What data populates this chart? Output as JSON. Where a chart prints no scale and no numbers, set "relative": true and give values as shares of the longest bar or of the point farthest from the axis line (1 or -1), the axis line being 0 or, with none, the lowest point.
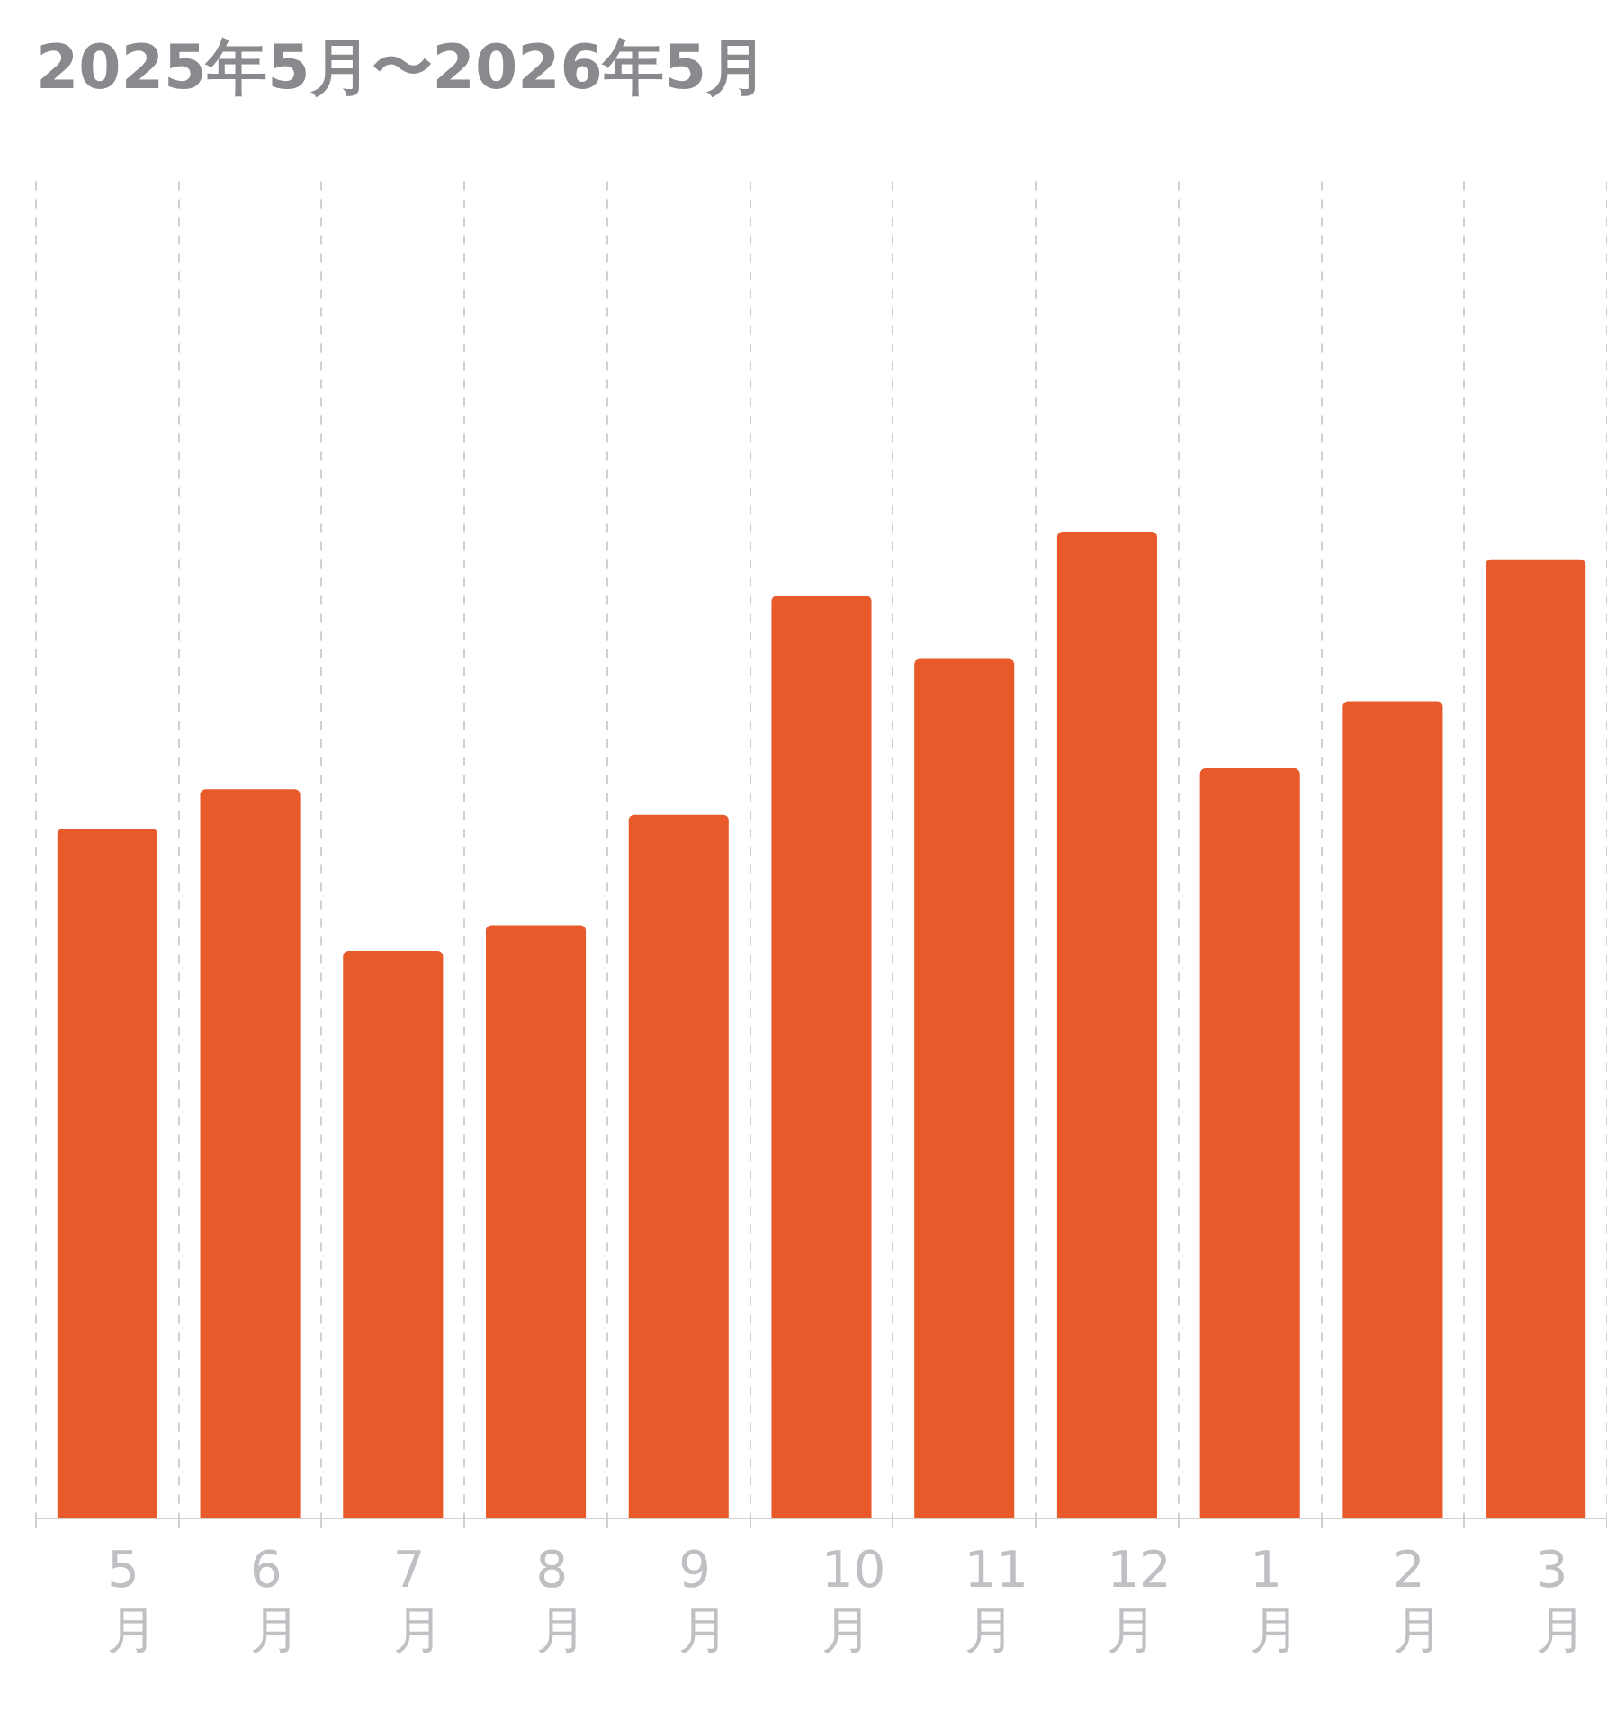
{
  "chart_data": {
    "type": "bar",
    "title": "2025年5月〜2026年5月",
    "relative": true,
    "categories": [
      "5月",
      "6月",
      "7月",
      "8月",
      "9月",
      "10月",
      "11月",
      "12月",
      "1月",
      "2月",
      "3月"
    ],
    "values": [
      0.699,
      0.739,
      0.575,
      0.601,
      0.713,
      0.935,
      0.871,
      1,
      0.76,
      0.828,
      0.972
    ],
    "color": "#e95a2b",
    "grid": "x",
    "legend": false
  }
}
